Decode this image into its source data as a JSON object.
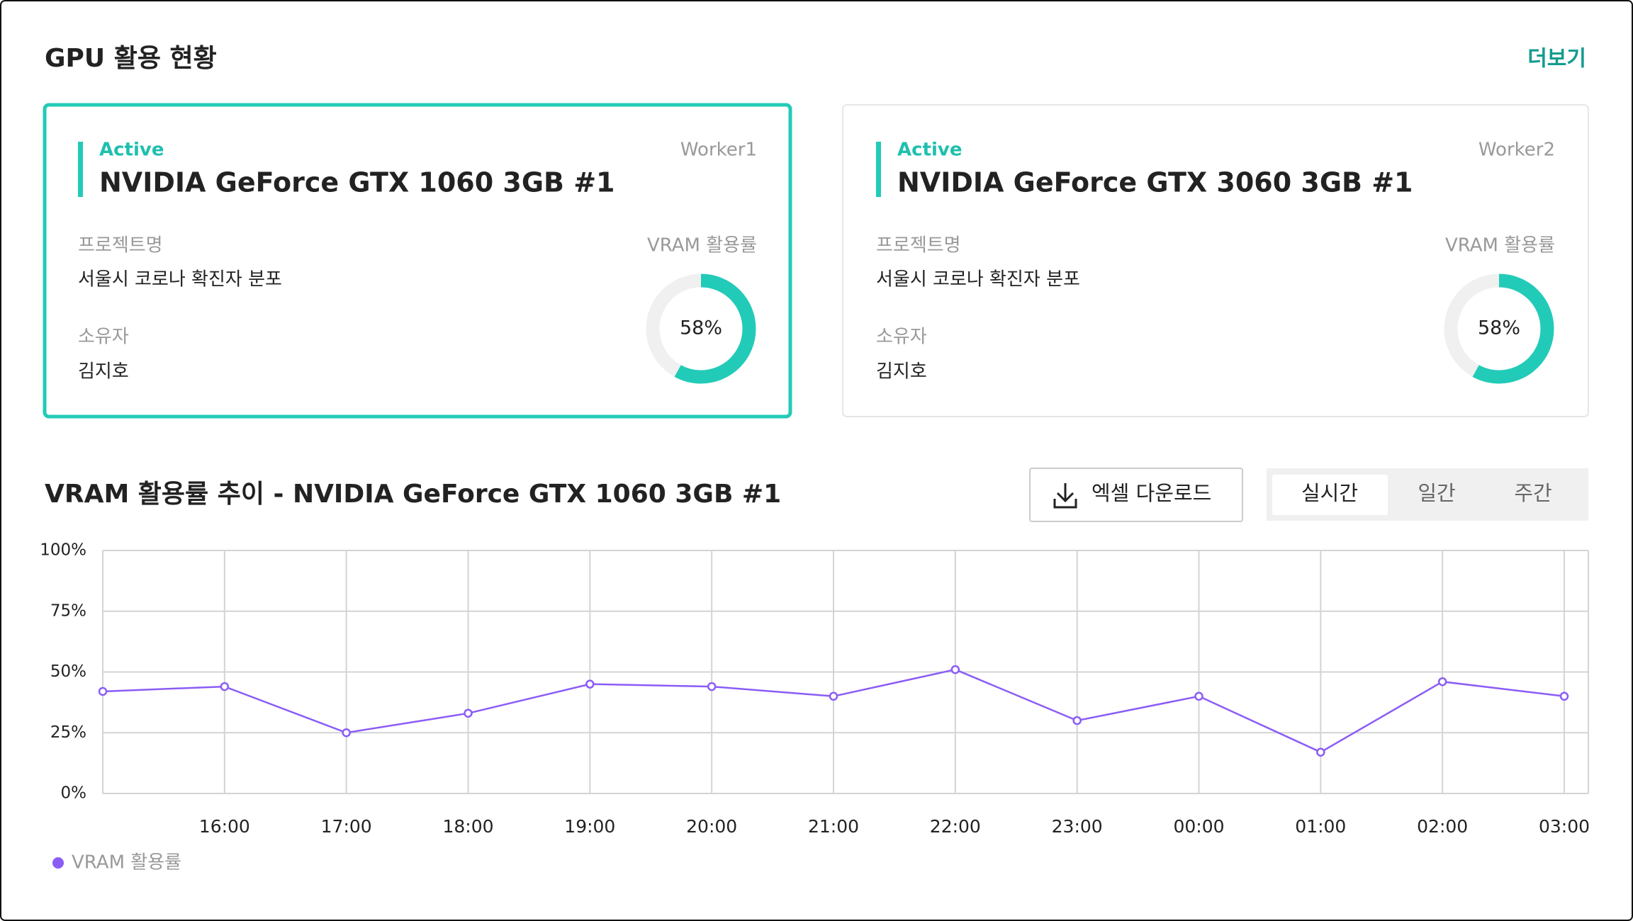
{
  "header": {
    "title": "GPU 활용 현황",
    "more": "더보기"
  },
  "cards": [
    {
      "status": "Active",
      "name": "NVIDIA GeForce GTX 1060 3GB #1",
      "worker": "Worker1",
      "project_label": "프로젝트명",
      "project": "서울시 코로나 확진자 분포",
      "owner_label": "소유자",
      "owner": "김지호",
      "vram_label": "VRAM 활용률",
      "vram": {
        "value": 58,
        "label": "58%"
      },
      "selected": true
    },
    {
      "status": "Active",
      "name": "NVIDIA GeForce GTX 3060 3GB #1",
      "worker": "Worker2",
      "project_label": "프로젝트명",
      "project": "서울시 코로나 확진자 분포",
      "owner_label": "소유자",
      "owner": "김지호",
      "vram_label": "VRAM 활용률",
      "vram": {
        "value": 58,
        "label": "58%"
      },
      "selected": false
    }
  ],
  "toolbar": {
    "download": "엑셀 다운로드",
    "tabs": [
      "실시간",
      "일간",
      "주간"
    ],
    "active_tab": 0
  },
  "chart_data": {
    "type": "line",
    "title": "VRAM 활용률 추이 - NVIDIA GeForce GTX 1060 3GB #1",
    "x": [
      null,
      "16:00",
      "17:00",
      "18:00",
      "19:00",
      "20:00",
      "21:00",
      "22:00",
      "23:00",
      "00:00",
      "01:00",
      "02:00",
      "03:00"
    ],
    "series": [
      {
        "name": "VRAM 활용률",
        "color": "#8b5cf6",
        "values": [
          42,
          44,
          25,
          33,
          45,
          44,
          40,
          51,
          30,
          40,
          17,
          46,
          40
        ]
      }
    ],
    "ylim": [
      0,
      100
    ],
    "yticks": [
      {
        "value": 0,
        "label": "0%"
      },
      {
        "value": 25,
        "label": "25%"
      },
      {
        "value": 50,
        "label": "50%"
      },
      {
        "value": 75,
        "label": "75%"
      },
      {
        "value": 100,
        "label": "100%"
      }
    ],
    "grid": true,
    "legend": "bottom-left"
  }
}
